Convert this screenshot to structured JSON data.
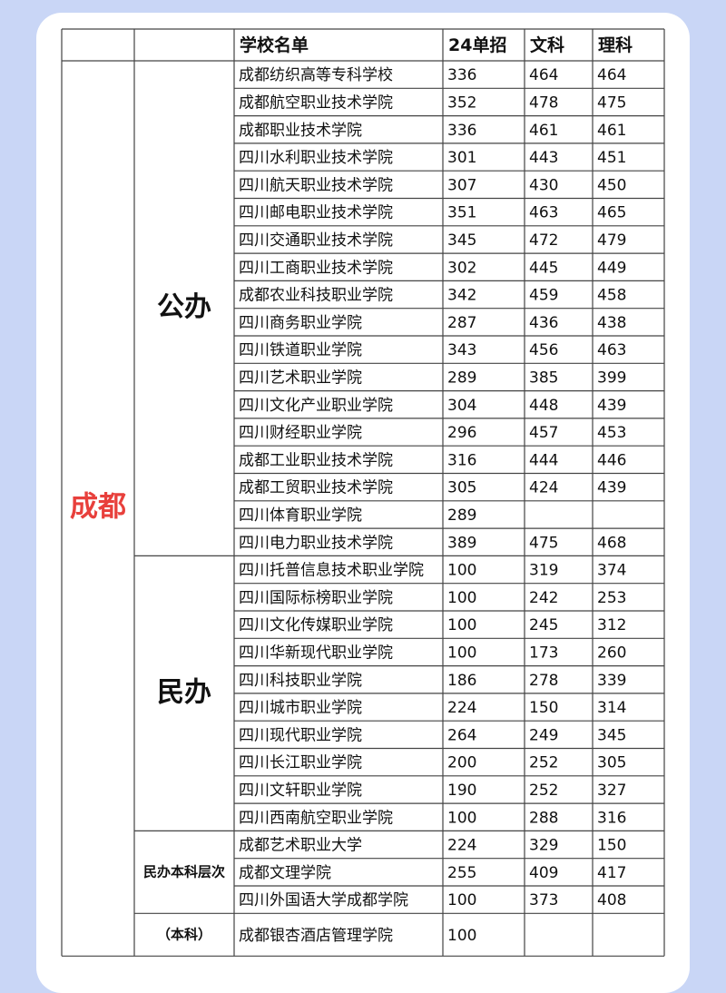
{
  "table": {
    "header": [
      "学校名单",
      "24单招",
      "文科",
      "理科"
    ],
    "city": "成都",
    "groups": [
      {
        "label": "公办",
        "rows": [
          [
            "成都纺织高等专科学校",
            336,
            464,
            464
          ],
          [
            "成都航空职业技术学院",
            352,
            478,
            475
          ],
          [
            "成都职业技术学院",
            336,
            461,
            461
          ],
          [
            "四川水利职业技术学院",
            301,
            443,
            451
          ],
          [
            "四川航天职业技术学院",
            307,
            430,
            450
          ],
          [
            "四川邮电职业技术学院",
            351,
            463,
            465
          ],
          [
            "四川交通职业技术学院",
            345,
            472,
            479
          ],
          [
            "四川工商职业技术学院",
            302,
            445,
            449
          ],
          [
            "成都农业科技职业学院",
            342,
            459,
            458
          ],
          [
            "四川商务职业学院",
            287,
            436,
            438
          ],
          [
            "四川铁道职业学院",
            343,
            456,
            463
          ],
          [
            "四川艺术职业学院",
            289,
            385,
            399
          ],
          [
            "四川文化产业职业学院",
            304,
            448,
            439
          ],
          [
            "四川财经职业学院",
            296,
            457,
            453
          ],
          [
            "成都工业职业技术学院",
            316,
            444,
            446
          ],
          [
            "成都工贸职业技术学院",
            305,
            424,
            439
          ],
          [
            "四川体育职业学院",
            289,
            null,
            null
          ],
          [
            "四川电力职业技术学院",
            389,
            475,
            468
          ]
        ]
      },
      {
        "label": "民办",
        "rows": [
          [
            "四川托普信息技术职业学院",
            100,
            319,
            374
          ],
          [
            "四川国际标榜职业学院",
            100,
            242,
            253
          ],
          [
            "四川文化传媒职业学院",
            100,
            245,
            312
          ],
          [
            "四川华新现代职业学院",
            100,
            173,
            260
          ],
          [
            "四川科技职业学院",
            186,
            278,
            339
          ],
          [
            "四川城市职业学院",
            224,
            150,
            314
          ],
          [
            "四川现代职业学院",
            264,
            249,
            345
          ],
          [
            "四川长江职业学院",
            200,
            252,
            305
          ],
          [
            "四川文轩职业学院",
            190,
            252,
            327
          ],
          [
            "四川西南航空职业学院",
            100,
            288,
            316
          ]
        ]
      },
      {
        "label": "民办本科层次",
        "rows": [
          [
            "成都艺术职业大学",
            224,
            329,
            150
          ],
          [
            "成都文理学院",
            255,
            409,
            417
          ],
          [
            "四川外国语大学成都学院",
            100,
            373,
            408
          ]
        ]
      },
      {
        "label": "（本科）",
        "rows": [
          [
            "成都银杏酒店管理学院",
            100,
            null,
            null
          ]
        ]
      }
    ]
  }
}
